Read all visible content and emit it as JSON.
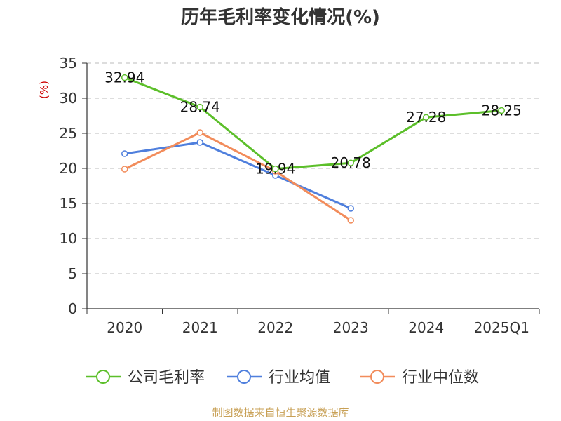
{
  "chart_data": {
    "type": "line",
    "title": "历年毛利率变化情况(%)",
    "ylabel": "(%)",
    "xlabel": "",
    "categories": [
      "2020",
      "2021",
      "2022",
      "2023",
      "2024",
      "2025Q1"
    ],
    "ylim": [
      0,
      35
    ],
    "yticks": [
      0,
      5,
      10,
      15,
      20,
      25,
      30,
      35
    ],
    "grid": true,
    "legend_position": "bottom",
    "series": [
      {
        "name": "公司毛利率",
        "color": "#5cbf2a",
        "values": [
          32.94,
          28.74,
          19.94,
          20.78,
          27.28,
          28.25
        ],
        "labels": [
          "32.94",
          "28.74",
          "19.94",
          "20.78",
          "27.28",
          "28.25"
        ]
      },
      {
        "name": "行业均值",
        "color": "#4f7fdd",
        "values": [
          22.1,
          23.7,
          19.0,
          14.3,
          null,
          null
        ]
      },
      {
        "name": "行业中位数",
        "color": "#f28c5b",
        "values": [
          19.9,
          25.1,
          19.6,
          12.6,
          null,
          null
        ]
      }
    ]
  },
  "footer": {
    "text": "制图数据来自恒生聚源数据库",
    "color": "#c8a055"
  },
  "colors": {
    "axis": "#333333",
    "grid": "#bbbbbb",
    "ylabel": "#cc0000"
  }
}
